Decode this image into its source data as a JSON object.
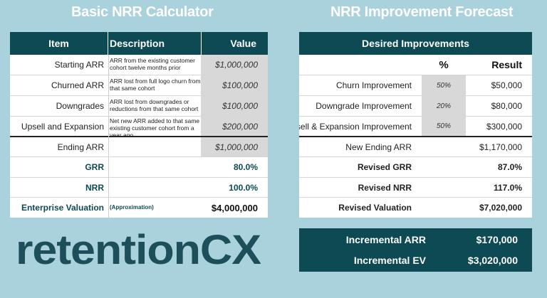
{
  "headings": {
    "left": "Basic NRR Calculator",
    "right": "NRR Improvement Forecast"
  },
  "left_table": {
    "headers": {
      "item": "Item",
      "description": "Description",
      "value": "Value"
    },
    "rows": [
      {
        "item": "Starting ARR",
        "description": "ARR from the existing customer cohort twelve months prior",
        "value": "$1,000,000"
      },
      {
        "item": "Churned ARR",
        "description": "ARR lost from full logo churn from that same cohort",
        "value": "$100,000"
      },
      {
        "item": "Downgrades",
        "description": "ARR lost from downgrades or reductions from that same cohort",
        "value": "$100,000"
      },
      {
        "item": "Upsell and Expansion",
        "description": "Net new ARR added to that same existing customer cohort from a year ago",
        "value": "$200,000"
      },
      {
        "item": "Ending ARR",
        "description": "",
        "value": "$1,000,000"
      },
      {
        "item": "GRR",
        "description": "",
        "value": "80.0%"
      },
      {
        "item": "NRR",
        "description": "",
        "value": "100.0%"
      },
      {
        "item": "Enterprise Valuation",
        "description": "(Approximation)",
        "value": "$4,000,000"
      }
    ]
  },
  "right_table": {
    "header": "Desired Improvements",
    "col_headers": {
      "pct": "%",
      "result": "Result"
    },
    "rows": [
      {
        "item": "Churn Improvement",
        "pct": "50%",
        "result": "$50,000"
      },
      {
        "item": "Downgrade Improvement",
        "pct": "20%",
        "result": "$80,000"
      },
      {
        "item": "Upsell & Expansion Improvement",
        "pct": "50%",
        "result": "$300,000"
      },
      {
        "item": "New Ending ARR",
        "pct": "",
        "result": "$1,170,000"
      },
      {
        "item": "Revised GRR",
        "pct": "",
        "result": "87.0%"
      },
      {
        "item": "Revised NRR",
        "pct": "",
        "result": "117.0%"
      },
      {
        "item": "Revised Valuation",
        "pct": "",
        "result": "$7,020,000"
      }
    ]
  },
  "summary": {
    "rows": [
      {
        "label": "Incremental ARR",
        "value": "$170,000"
      },
      {
        "label": "Incremental EV",
        "value": "$3,020,000"
      }
    ]
  },
  "logo": {
    "text": "retentionCX"
  },
  "colors": {
    "background": "#a9d2dc",
    "teal": "#0d4a54",
    "shade": "#d8d8d8"
  }
}
